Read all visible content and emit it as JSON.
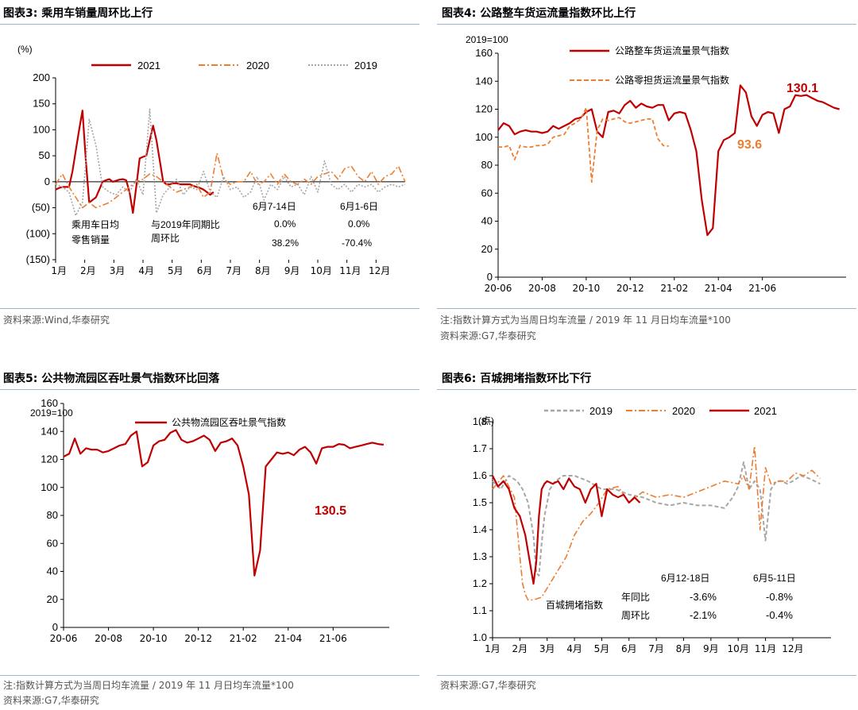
{
  "colors": {
    "s2021": "#c00000",
    "s2020": "#ed7d31",
    "s2019": "#a6a6a6",
    "rule": "#9fb6cf",
    "note": "#555555"
  },
  "chart3": {
    "title": "图表3:  乘用车销量周环比上行",
    "unit": "(%)",
    "legend": [
      "2021",
      "2020",
      "2019"
    ],
    "source": "资料来源:Wind,华泰研究",
    "annotations": {
      "metric_l1": "乘用车日均",
      "metric_l2": "零售销量",
      "basis_l1": "与2019年同期比",
      "basis_l2": "周环比",
      "period1": "6月7-14日",
      "period2": "6月1-6日",
      "v1a": "0.0%",
      "v2a": "0.0%",
      "v1b": "38.2%",
      "v2b": "-70.4%"
    },
    "chart_data": {
      "type": "line",
      "ylim": [
        -150,
        200
      ],
      "yticks": [
        "200",
        "150",
        "100",
        "50",
        "0",
        "(50)",
        "(100)",
        "(150)"
      ],
      "xticks": [
        "1月",
        "2月",
        "3月",
        "4月",
        "5月",
        "6月",
        "7月",
        "8月",
        "9月",
        "10月",
        "11月",
        "12月"
      ],
      "x_unit": "week of year",
      "series": [
        {
          "name": "2021",
          "x": [
            0,
            0.5,
            1,
            1.5,
            2,
            2.5,
            3,
            3.5,
            4,
            4.5,
            5,
            5.5,
            6,
            6.5,
            7,
            7.5,
            8,
            8.5,
            9,
            9.5,
            10,
            10.5,
            11,
            11.5,
            12,
            12.5,
            13,
            13.5,
            14,
            14.5,
            15,
            15.5,
            16,
            16.5,
            17,
            17.5,
            18,
            18.5,
            19,
            19.5,
            20,
            20.5,
            21,
            21.5,
            22,
            22.5,
            23,
            23.5
          ],
          "values": [
            -15,
            -12,
            -10,
            -10,
            -10,
            20,
            60,
            100,
            137,
            40,
            -40,
            -35,
            -30,
            -15,
            0,
            3,
            5,
            0,
            2,
            4,
            5,
            3,
            -20,
            -60,
            -10,
            45,
            48,
            50,
            80,
            108,
            80,
            40,
            0,
            -5,
            -5,
            -3,
            -3,
            -5,
            -5,
            -5,
            -5,
            -8,
            -10,
            -12,
            -15,
            -20,
            -25,
            -20
          ]
        },
        {
          "name": "2020",
          "x": [
            0,
            1,
            2,
            3,
            4,
            5,
            6,
            7,
            8,
            9,
            10,
            11,
            12,
            13,
            14,
            15,
            16,
            17,
            18,
            19,
            20,
            21,
            22,
            23,
            24,
            25,
            26,
            27,
            28,
            29,
            30,
            31,
            32,
            33,
            34,
            35,
            36,
            37,
            38,
            39,
            40,
            41,
            42,
            43,
            44,
            45,
            46,
            47,
            48,
            49,
            50,
            51,
            52
          ],
          "values": [
            -5,
            15,
            -10,
            -30,
            -50,
            -40,
            -50,
            -45,
            -40,
            -30,
            -20,
            -10,
            0,
            5,
            15,
            10,
            0,
            -10,
            -20,
            -15,
            -10,
            -5,
            -30,
            -20,
            55,
            5,
            -5,
            0,
            0,
            20,
            -5,
            0,
            15,
            -5,
            15,
            0,
            -5,
            5,
            -5,
            10,
            15,
            20,
            5,
            25,
            30,
            10,
            0,
            20,
            -5,
            10,
            15,
            30,
            0
          ]
        },
        {
          "name": "2019",
          "x": [
            0,
            1,
            2,
            3,
            4,
            5,
            6,
            7,
            8,
            9,
            10,
            11,
            12,
            13,
            14,
            15,
            16,
            17,
            18,
            19,
            20,
            21,
            22,
            23,
            24,
            25,
            26,
            27,
            28,
            29,
            30,
            31,
            32,
            33,
            34,
            35,
            36,
            37,
            38,
            39,
            40,
            41,
            42,
            43,
            44,
            45,
            46,
            47,
            48,
            49,
            50,
            51,
            52
          ],
          "values": [
            -5,
            -10,
            -20,
            -65,
            -40,
            120,
            70,
            -10,
            -20,
            -25,
            -10,
            -20,
            5,
            -25,
            140,
            -60,
            -25,
            -10,
            5,
            -25,
            -10,
            -15,
            20,
            -20,
            -30,
            10,
            -15,
            -10,
            -30,
            -20,
            10,
            -35,
            -5,
            -15,
            10,
            -10,
            -5,
            -25,
            10,
            -20,
            40,
            -5,
            -15,
            -5,
            -20,
            -5,
            -10,
            -5,
            -20,
            -10,
            -5,
            -10,
            -5
          ]
        }
      ]
    }
  },
  "chart4": {
    "title": "图表4:  公路整车货运流量指数环比上行",
    "unit": "2019=100",
    "legend": [
      "公路整车货运流量景气指数",
      "公路零担货运流量景气指数"
    ],
    "callout1": "130.1",
    "callout2": "93.6",
    "note": "注:指数计算方式为当周日均车流量 / 2019 年 11 月日均车流量*100",
    "source": "资料来源:G7,华泰研究",
    "chart_data": {
      "type": "line",
      "ylim": [
        0,
        160
      ],
      "yticks": [
        "0",
        "20",
        "40",
        "60",
        "80",
        "100",
        "120",
        "140",
        "160"
      ],
      "xticks": [
        "20-06",
        "20-08",
        "20-10",
        "20-12",
        "21-02",
        "21-04",
        "21-06"
      ],
      "x_unit": "months since 20-06",
      "series": [
        {
          "name": "公路整车货运流量景气指数",
          "x": [
            0,
            0.25,
            0.5,
            0.75,
            1,
            1.25,
            1.5,
            1.75,
            2,
            2.25,
            2.5,
            2.75,
            3,
            3.25,
            3.5,
            3.75,
            4,
            4.25,
            4.5,
            4.75,
            5,
            5.25,
            5.5,
            5.75,
            6,
            6.25,
            6.5,
            6.75,
            7,
            7.25,
            7.5,
            7.75,
            8,
            8.25,
            8.5,
            8.75,
            9,
            9.25,
            9.5,
            9.75,
            10,
            10.25,
            10.5,
            10.75,
            11,
            11.25,
            11.5,
            11.75,
            12,
            12.25,
            12.5,
            12.75,
            13,
            13.25,
            13.5,
            13.75,
            14,
            14.25,
            14.5,
            14.75,
            15,
            15.25,
            15.5
          ],
          "values": [
            105,
            110,
            108,
            102,
            104,
            105,
            104,
            104,
            103,
            104,
            108,
            106,
            108,
            110,
            113,
            114,
            118,
            120,
            104,
            100,
            118,
            119,
            117,
            123,
            126,
            121,
            124,
            122,
            121,
            123,
            123,
            112,
            117,
            118,
            117,
            105,
            90,
            55,
            30,
            35,
            90,
            98,
            100,
            103,
            137,
            132,
            115,
            108,
            116,
            118,
            117,
            103,
            120,
            122,
            130,
            129.5,
            130.1,
            128,
            126,
            125,
            123,
            121,
            120
          ]
        },
        {
          "name": "公路零担货运流量景气指数",
          "x": [
            0,
            0.25,
            0.5,
            0.75,
            1,
            1.25,
            1.5,
            1.75,
            2,
            2.25,
            2.5,
            2.75,
            3,
            3.25,
            3.5,
            3.75,
            4,
            4.25,
            4.5,
            4.75,
            5,
            5.25,
            5.5,
            5.75,
            6,
            6.25,
            6.5,
            6.75,
            7,
            7.25,
            7.5,
            7.75
          ],
          "values": [
            93,
            93,
            94,
            84,
            94,
            93,
            93,
            94,
            94,
            95,
            100,
            101,
            102,
            108,
            110,
            113,
            121,
            68,
            105,
            113,
            112,
            113,
            114,
            111,
            110,
            111,
            112,
            113,
            113,
            99,
            94,
            93.6
          ]
        }
      ]
    }
  },
  "chart5": {
    "title": "图表5:  公共物流园区吞吐景气指数环比回落",
    "unit": "2019=100",
    "legend": [
      "公共物流园区吞吐景气指数"
    ],
    "callout": "130.5",
    "note": "注:指数计算方式为当周日均车流量 / 2019 年 11 月日均车流量*100",
    "source": "资料来源:G7,华泰研究",
    "chart_data": {
      "type": "line",
      "ylim": [
        0,
        160
      ],
      "yticks": [
        "0",
        "20",
        "40",
        "60",
        "80",
        "100",
        "120",
        "140",
        "160"
      ],
      "xticks": [
        "20-06",
        "20-08",
        "20-10",
        "20-12",
        "21-02",
        "21-04",
        "21-06"
      ],
      "x_unit": "months since 20-06",
      "series": [
        {
          "name": "公共物流园区吞吐景气指数",
          "x": [
            0,
            0.25,
            0.5,
            0.75,
            1,
            1.25,
            1.5,
            1.75,
            2,
            2.25,
            2.5,
            2.75,
            3,
            3.25,
            3.5,
            3.75,
            4,
            4.25,
            4.5,
            4.75,
            5,
            5.25,
            5.5,
            5.75,
            6,
            6.25,
            6.5,
            6.75,
            7,
            7.25,
            7.5,
            7.75,
            8,
            8.25,
            8.5,
            8.75,
            9,
            9.25,
            9.5,
            9.75,
            10,
            10.25,
            10.5,
            10.75,
            11,
            11.25,
            11.5,
            11.75,
            12,
            12.25,
            12.5,
            12.75,
            13,
            13.25,
            13.5,
            13.75,
            14,
            14.25
          ],
          "values": [
            122,
            124,
            135,
            124,
            128,
            127,
            127,
            125,
            126,
            128,
            130,
            131,
            137,
            140,
            115,
            118,
            130,
            133,
            134,
            139,
            141,
            134,
            132,
            133,
            135,
            137,
            134,
            126,
            132,
            133,
            135,
            130,
            115,
            95,
            37,
            55,
            115,
            120,
            125,
            124,
            125,
            123,
            127,
            129,
            125,
            117,
            128,
            129,
            129,
            131,
            130.5,
            128,
            129,
            130,
            131,
            132,
            131,
            130.5
          ]
        }
      ]
    }
  },
  "chart6": {
    "title": "图表6:  百城拥堵指数环比下行",
    "unit": "(点)",
    "legend": [
      "2019",
      "2020",
      "2021"
    ],
    "source": "资料来源:G7,华泰研究",
    "annotations": {
      "metric": "百城拥堵指数",
      "yoy": "年同比",
      "wow": "周环比",
      "period1": "6月12-18日",
      "period2": "6月5-11日",
      "v1a": "-3.6%",
      "v2a": "-0.8%",
      "v1b": "-2.1%",
      "v2b": "-0.4%"
    },
    "chart_data": {
      "type": "line",
      "ylim": [
        1.0,
        1.8
      ],
      "yticks": [
        "1.0",
        "1.1",
        "1.2",
        "1.3",
        "1.4",
        "1.5",
        "1.6",
        "1.7",
        "1.8"
      ],
      "xticks": [
        "1月",
        "2月",
        "3月",
        "4月",
        "5月",
        "6月",
        "7月",
        "8月",
        "9月",
        "10月",
        "11月",
        "12月"
      ],
      "x_unit": "month of year",
      "series": [
        {
          "name": "2019",
          "x": [
            0,
            0.3,
            0.6,
            0.9,
            1.1,
            1.3,
            1.5,
            1.6,
            1.7,
            1.8,
            1.9,
            2.1,
            2.3,
            2.6,
            3,
            3.5,
            4,
            4.5,
            5,
            5.5,
            6,
            6.5,
            7,
            7.5,
            8,
            8.5,
            8.8,
            9,
            9.2,
            9.4,
            9.6,
            9.8,
            10,
            10.2,
            10.4,
            10.6,
            10.8,
            11,
            11.3,
            11.6,
            12
          ],
          "values": [
            1.58,
            1.55,
            1.6,
            1.58,
            1.55,
            1.5,
            1.38,
            1.24,
            1.23,
            1.35,
            1.45,
            1.55,
            1.58,
            1.6,
            1.6,
            1.58,
            1.55,
            1.55,
            1.53,
            1.52,
            1.5,
            1.49,
            1.5,
            1.49,
            1.49,
            1.48,
            1.52,
            1.56,
            1.65,
            1.55,
            1.58,
            1.55,
            1.36,
            1.55,
            1.58,
            1.58,
            1.57,
            1.58,
            1.6,
            1.59,
            1.57
          ]
        },
        {
          "name": "2020",
          "x": [
            0,
            0.4,
            0.8,
            1.0,
            1.1,
            1.2,
            1.3,
            1.5,
            1.8,
            2.1,
            2.4,
            2.7,
            3,
            3.3,
            3.6,
            3.9,
            4.2,
            4.6,
            5,
            5.5,
            6,
            6.5,
            7,
            7.5,
            8,
            8.5,
            9,
            9.2,
            9.4,
            9.6,
            9.8,
            10,
            10.2,
            10.5,
            10.8,
            11.1,
            11.4,
            11.7,
            12
          ],
          "values": [
            1.55,
            1.6,
            1.52,
            1.3,
            1.2,
            1.16,
            1.14,
            1.14,
            1.15,
            1.2,
            1.25,
            1.3,
            1.38,
            1.43,
            1.46,
            1.5,
            1.55,
            1.56,
            1.5,
            1.54,
            1.52,
            1.53,
            1.52,
            1.54,
            1.56,
            1.58,
            1.57,
            1.6,
            1.55,
            1.71,
            1.4,
            1.63,
            1.57,
            1.58,
            1.58,
            1.61,
            1.6,
            1.62,
            1.59
          ]
        },
        {
          "name": "2021",
          "x": [
            0,
            0.2,
            0.4,
            0.6,
            0.8,
            1.0,
            1.2,
            1.4,
            1.5,
            1.6,
            1.7,
            1.8,
            1.9,
            2.0,
            2.2,
            2.4,
            2.6,
            2.8,
            3.0,
            3.2,
            3.4,
            3.6,
            3.8,
            4.0,
            4.2,
            4.4,
            4.6,
            4.8,
            5.0,
            5.2,
            5.4
          ],
          "values": [
            1.6,
            1.56,
            1.58,
            1.55,
            1.48,
            1.45,
            1.38,
            1.26,
            1.2,
            1.28,
            1.45,
            1.55,
            1.57,
            1.58,
            1.57,
            1.58,
            1.55,
            1.59,
            1.56,
            1.55,
            1.5,
            1.55,
            1.57,
            1.45,
            1.55,
            1.53,
            1.52,
            1.53,
            1.5,
            1.52,
            1.5
          ]
        }
      ]
    }
  }
}
